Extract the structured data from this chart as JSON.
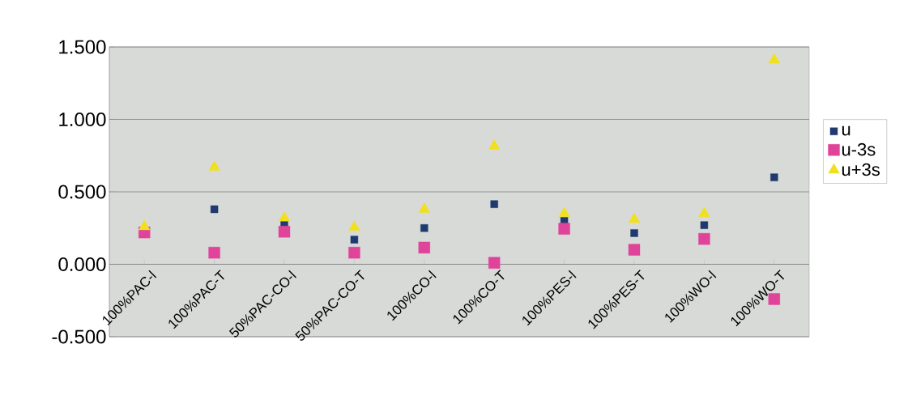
{
  "chart_data": {
    "type": "scatter",
    "categories": [
      "100%PAC-l",
      "100%PAC-T",
      "50%PAC-CO-l",
      "50%PAC-CO-T",
      "100%CO-l",
      "100%CO-T",
      "100%PES-l",
      "100%PES-T",
      "100%WO-l",
      "100%WO-T"
    ],
    "series": [
      {
        "name": "u",
        "color": "#1f3a6e",
        "marker": "square",
        "values": [
          null,
          0.38,
          0.275,
          0.17,
          0.25,
          0.415,
          0.3,
          0.215,
          0.27,
          0.6
        ]
      },
      {
        "name": "u-3s",
        "color": "#e0449a",
        "marker": "square",
        "values": [
          0.22,
          0.08,
          0.225,
          0.08,
          0.115,
          0.01,
          0.245,
          0.1,
          0.175,
          -0.24
        ]
      },
      {
        "name": "u+3s",
        "color": "#f0e020",
        "marker": "triangle",
        "values": [
          0.26,
          0.67,
          0.32,
          0.255,
          0.38,
          0.815,
          0.35,
          0.31,
          0.35,
          1.41
        ]
      }
    ],
    "ylim": [
      -0.5,
      1.5
    ],
    "yticks": [
      {
        "value": -0.5,
        "label": "-0.500"
      },
      {
        "value": 0,
        "label": "0.000"
      },
      {
        "value": 0.5,
        "label": "0.500"
      },
      {
        "value": 1.0,
        "label": "1.000"
      },
      {
        "value": 1.5,
        "label": "1.500"
      }
    ],
    "grid": "y",
    "legend": "right"
  }
}
